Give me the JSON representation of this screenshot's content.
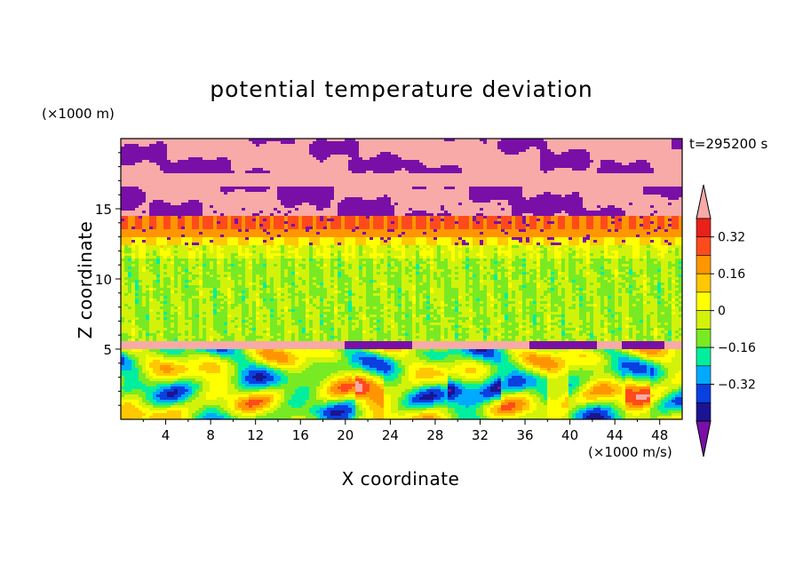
{
  "chart_data": {
    "type": "heatmap",
    "title": "potential temperature deviation",
    "xlabel": "X coordinate",
    "ylabel": "Z coordinate",
    "x_unit": "(×1000 m/s)",
    "y_unit": "(×1000 m)",
    "time_label": "t=295200 s",
    "xlim": [
      0,
      50
    ],
    "ylim": [
      0,
      20
    ],
    "x_ticks": [
      4,
      8,
      12,
      16,
      20,
      24,
      28,
      32,
      36,
      40,
      44,
      48
    ],
    "y_ticks": [
      5,
      10,
      15
    ],
    "colorbar": {
      "colors": [
        "#7a0fa8",
        "#1a1490",
        "#0a3fe0",
        "#00aaff",
        "#00ef9e",
        "#78ea23",
        "#d3f20a",
        "#ffff00",
        "#ffc800",
        "#ff9600",
        "#ff4a1c",
        "#e8211a",
        "#f8aaa8"
      ],
      "labeled_levels": [
        0.32,
        0.16,
        0,
        -0.16,
        -0.32
      ],
      "level_labels": [
        "0.32",
        "0.16",
        "0",
        "−0.16",
        "−0.32"
      ],
      "extend": "both"
    },
    "layers": [
      {
        "z_range": [
          0,
          5
        ],
        "description_value": "mixed positive and negative anomalies"
      },
      {
        "z_range": [
          5,
          5.6
        ],
        "value": 0.4
      },
      {
        "z_range": [
          5.6,
          12.5
        ],
        "value": 0.0
      },
      {
        "z_range": [
          12.5,
          14.5
        ],
        "value": 0.25
      },
      {
        "z_range": [
          14.5,
          20
        ],
        "description_value": "alternating strong positive and strong negative bands"
      }
    ]
  }
}
